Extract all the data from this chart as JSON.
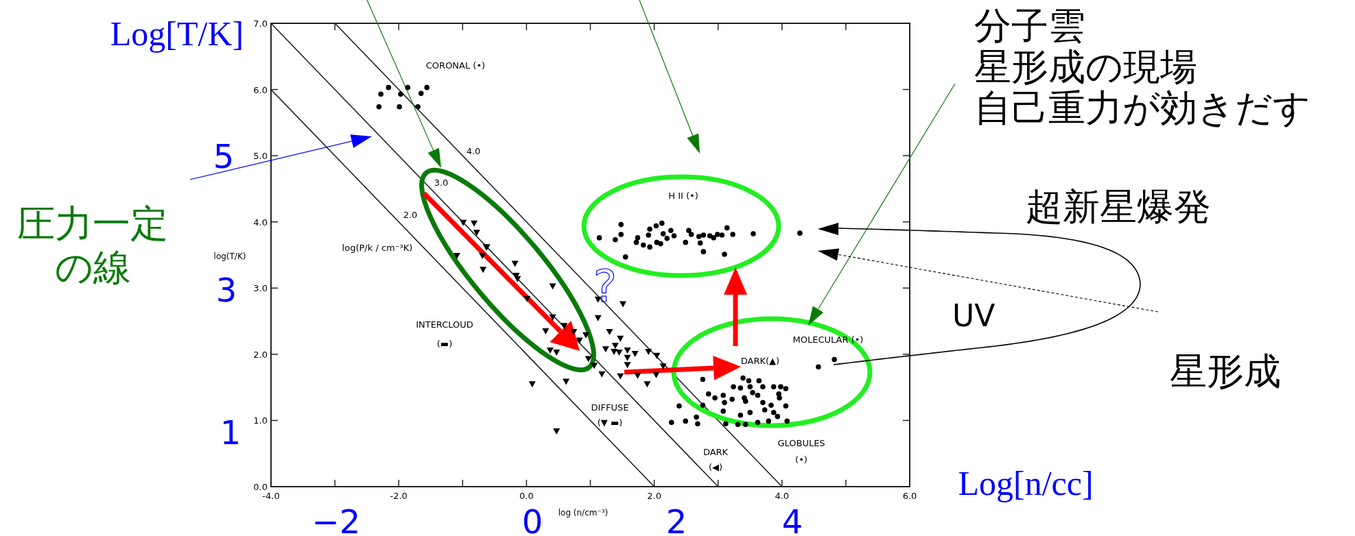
{
  "chart_data": {
    "type": "scatter",
    "xlabel": "log (n/cm⁻³)",
    "ylabel": "log(T/K)",
    "xlim": [
      -4,
      6
    ],
    "ylim": [
      0,
      7
    ],
    "grid": false,
    "xticks": [
      {
        "value": -4,
        "label": "-4.0"
      },
      {
        "value": -3,
        "label": null
      },
      {
        "value": -2,
        "label": "-2.0"
      },
      {
        "value": -1,
        "label": null
      },
      {
        "value": 0,
        "label": "0.0"
      },
      {
        "value": 1,
        "label": null
      },
      {
        "value": 2,
        "label": "2.0"
      },
      {
        "value": 3,
        "label": null
      },
      {
        "value": 4,
        "label": "4.0"
      },
      {
        "value": 5,
        "label": null
      },
      {
        "value": 6,
        "label": "6.0"
      }
    ],
    "yticks": [
      {
        "value": 0,
        "label": "0.0"
      },
      {
        "value": 1,
        "label": "1.0"
      },
      {
        "value": 2,
        "label": "2.0"
      },
      {
        "value": 3,
        "label": "3.0"
      },
      {
        "value": 4,
        "label": "4.0"
      },
      {
        "value": 5,
        "label": "5.0"
      },
      {
        "value": 6,
        "label": "6.0"
      },
      {
        "value": 7,
        "label": "7.0"
      }
    ],
    "series": [
      {
        "type": "line",
        "color": "#222222",
        "x": [
          -4,
          2
        ],
        "values": [
          6,
          0
        ]
      },
      {
        "type": "line",
        "color": "#222222",
        "x": [
          -4,
          3
        ],
        "values": [
          7,
          0
        ]
      },
      {
        "type": "line",
        "color": "#222222",
        "x": [
          -3,
          4
        ],
        "values": [
          7,
          0
        ]
      },
      {
        "marker": "circle",
        "color": "#000000",
        "x": [
          -2.28,
          -2.16,
          -1.97,
          -1.86,
          -1.65,
          -1.56,
          -2.31,
          -1.99,
          -1.7
        ],
        "values": [
          5.93,
          6.03,
          5.93,
          6.03,
          5.94,
          6.03,
          5.74,
          5.74,
          5.74
        ]
      },
      {
        "marker": "circle",
        "color": "#000000",
        "x": [
          1.14,
          1.39,
          1.48,
          1.48,
          1.72,
          1.74,
          1.83,
          1.93,
          1.91,
          1.93,
          2.03,
          2.12,
          2.14,
          2.2,
          2.26,
          2.31,
          2.04,
          2.1,
          2.49,
          2.54,
          2.58,
          2.7,
          2.72,
          2.77,
          2.87,
          2.93,
          2.99,
          3.06,
          3.14,
          3.23,
          3.55,
          2.77,
          3.1,
          4.28,
          1.55
        ],
        "values": [
          3.76,
          3.73,
          3.96,
          3.81,
          3.69,
          3.76,
          3.65,
          3.62,
          3.8,
          3.89,
          3.94,
          3.98,
          3.82,
          3.75,
          3.87,
          3.79,
          3.69,
          3.67,
          3.69,
          3.87,
          3.81,
          3.78,
          3.68,
          3.8,
          3.79,
          3.76,
          3.81,
          3.8,
          3.91,
          3.81,
          3.82,
          3.55,
          3.51,
          3.83,
          3.47
        ]
      },
      {
        "marker": "triangle",
        "color": "#000000",
        "x": [
          -0.99,
          -0.82,
          -0.78,
          -1.09,
          -0.63,
          -0.69,
          -0.62,
          -0.68,
          -0.18,
          -0.16,
          -0.14,
          0.41,
          0.01,
          0.41,
          0.59,
          0.3,
          0.74,
          0.83,
          0.93,
          0.37,
          0.47,
          0.97,
          1.18,
          1.47,
          1.12,
          1.12,
          1.3,
          1.47,
          1.24,
          1.37,
          1.39,
          1.45,
          1.58,
          1.7,
          1.58,
          1.58,
          1.51,
          1.91,
          2.04,
          2.14,
          2.03,
          1.74,
          1.89,
          0.62,
          0.09,
          0.47,
          1.06
        ],
        "values": [
          3.99,
          3.98,
          3.84,
          3.49,
          3.62,
          3.49,
          3.62,
          3.28,
          3.37,
          3.19,
          3.14,
          3.03,
          2.84,
          2.56,
          2.43,
          2.35,
          2.34,
          2.21,
          2.29,
          2.06,
          2.03,
          1.93,
          1.7,
          1.67,
          2.83,
          2.55,
          2.34,
          2.24,
          2.08,
          2.04,
          2.13,
          2.03,
          2.06,
          2.01,
          1.95,
          1.84,
          2.76,
          2.04,
          1.98,
          1.82,
          1.69,
          1.68,
          1.55,
          1.59,
          1.55,
          0.84,
          1.83
        ]
      },
      {
        "marker": "circle",
        "color": "#000000",
        "x": [
          3.39,
          3.48,
          3.64,
          3.24,
          3.35,
          3.5,
          3.7,
          3.87,
          3.98,
          4.06,
          2.85,
          2.95,
          3.08,
          3.22,
          3.41,
          3.54,
          3.62,
          3.95,
          3.96,
          3.1,
          3.43,
          3.7,
          3.83,
          4.06,
          3.08,
          3.35,
          3.5,
          3.73,
          3.87,
          3.93,
          3.12,
          3.31,
          3.43,
          3.62,
          3.79,
          4.08,
          2.76,
          2.39,
          2.27,
          2.49,
          2.66,
          2.68,
          2.76,
          4.57,
          4.82
        ],
        "values": [
          1.64,
          1.6,
          1.6,
          1.51,
          1.49,
          1.51,
          1.51,
          1.51,
          1.51,
          1.48,
          1.4,
          1.34,
          1.38,
          1.32,
          1.34,
          1.42,
          1.38,
          1.4,
          1.34,
          1.27,
          1.29,
          1.27,
          1.23,
          1.22,
          1.14,
          1.08,
          1.12,
          1.16,
          1.12,
          1.06,
          0.95,
          0.94,
          0.94,
          0.97,
          0.99,
          0.99,
          1.23,
          1.22,
          0.97,
          0.99,
          1.05,
          0.95,
          1.62,
          1.81,
          1.92
        ]
      }
    ],
    "annotations": [
      "CORONAL (•)",
      "H II (•)",
      "MOLECULAR (•)",
      "DARK(▲)",
      "INTERCLOUD\n(▬)",
      "DIFFUSE\n(▼ ▬)",
      "DARK\n(◀)",
      "GLOBULES\n(•)",
      "log(P/k / cm⁻³K)",
      "2.0",
      "3.0",
      "4.0",
      "Log[T/K]",
      "Log[n/cc]",
      "5",
      "3",
      "1",
      "−2",
      "0",
      "2",
      "4",
      "圧力一定",
      "の線",
      "分子雲",
      "星形成の現場",
      "自己重力が効きだす",
      "超新星爆発",
      "UV",
      "星形成",
      "?"
    ]
  }
}
